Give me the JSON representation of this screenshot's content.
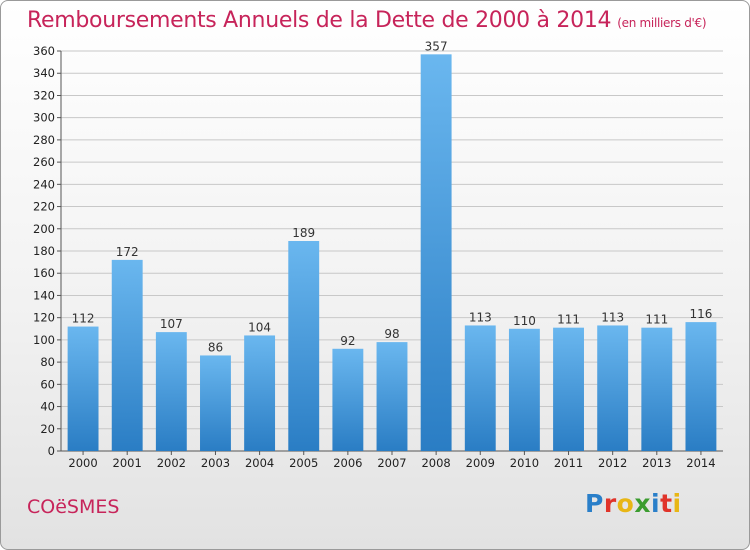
{
  "title": "Remboursements Annuels de la Dette de 2000 à 2014",
  "subtitle": "(en milliers d'€)",
  "city": "COëSMES",
  "logo": {
    "text": "Proxiti",
    "colors": [
      "#2a7fc9",
      "#e0342a",
      "#e8b615",
      "#3b9c2f",
      "#2a7fc9",
      "#e0342a",
      "#e8b615"
    ]
  },
  "colors": {
    "title": "#c7245a",
    "bar_top": "#6ab7ef",
    "bar_bottom": "#2a7dc4",
    "grid": "#c8c8c8",
    "axis": "#555555"
  },
  "chart_data": {
    "type": "bar",
    "categories": [
      "2000",
      "2001",
      "2002",
      "2003",
      "2004",
      "2005",
      "2006",
      "2007",
      "2008",
      "2009",
      "2010",
      "2011",
      "2012",
      "2013",
      "2014"
    ],
    "values": [
      112,
      172,
      107,
      86,
      104,
      189,
      92,
      98,
      357,
      113,
      110,
      111,
      113,
      111,
      116
    ],
    "title": "Remboursements Annuels de la Dette de 2000 à 2014",
    "xlabel": "",
    "ylabel": "",
    "ylim": [
      0,
      360
    ],
    "yticks": [
      0,
      20,
      40,
      60,
      80,
      100,
      120,
      140,
      160,
      180,
      200,
      220,
      240,
      260,
      280,
      300,
      320,
      340,
      360
    ],
    "grid": true,
    "data_labels": true
  }
}
